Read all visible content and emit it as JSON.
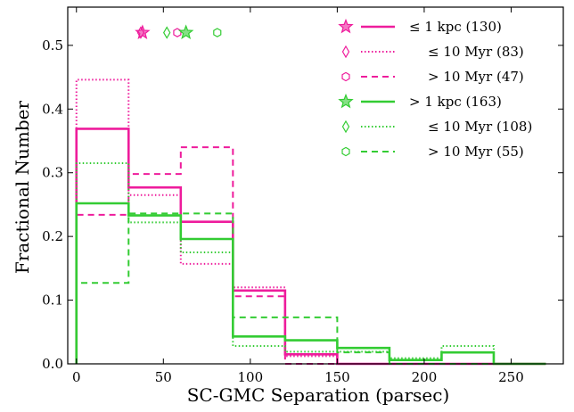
{
  "chart_data": {
    "type": "histogram",
    "xlabel": "SC-GMC Separation (parsec)",
    "ylabel": "Fractional Number",
    "xlim": [
      -5,
      280
    ],
    "ylim": [
      0,
      0.56
    ],
    "xticks": [
      0,
      50,
      100,
      150,
      200,
      250
    ],
    "yticks": [
      0.0,
      0.1,
      0.2,
      0.3,
      0.4,
      0.5
    ],
    "bin_edges": [
      0,
      30,
      60,
      90,
      120,
      150,
      180,
      210,
      240,
      270
    ],
    "series": [
      {
        "name": "≤ 1 kpc (130)",
        "color": "#ee1c9c",
        "style": "solid",
        "marker": "star",
        "marker_x": 38,
        "values": [
          0.369,
          0.277,
          0.223,
          0.115,
          0.015,
          0.0,
          0.0,
          0.0,
          0.0
        ]
      },
      {
        "name": "≤ 10 Myr (83)",
        "color": "#ee1c9c",
        "style": "dotted",
        "marker": "diamond",
        "marker_x": 37,
        "values": [
          0.446,
          0.265,
          0.157,
          0.12,
          0.012,
          0.0,
          0.0,
          0.0,
          0.0
        ]
      },
      {
        "name": "> 10 Myr (47)",
        "color": "#ee1c9c",
        "style": "dashed",
        "marker": "hexagon",
        "marker_x": 58,
        "values": [
          0.234,
          0.298,
          0.34,
          0.106,
          0.0,
          0.0,
          0.0,
          0.0,
          0.0
        ]
      },
      {
        "name": "> 1 kpc (163)",
        "color": "#33cc33",
        "style": "solid",
        "marker": "star",
        "marker_x": 63,
        "values": [
          0.252,
          0.233,
          0.196,
          0.043,
          0.037,
          0.025,
          0.006,
          0.018,
          0.0
        ]
      },
      {
        "name": "≤ 10 Myr (108)",
        "color": "#33cc33",
        "style": "dotted",
        "marker": "diamond",
        "marker_x": 52,
        "values": [
          0.315,
          0.222,
          0.175,
          0.028,
          0.019,
          0.019,
          0.009,
          0.028,
          0.0
        ]
      },
      {
        "name": "> 10 Myr (55)",
        "color": "#33cc33",
        "style": "dashed",
        "marker": "hexagon",
        "marker_x": 81,
        "values": [
          0.127,
          0.236,
          0.236,
          0.073,
          0.073,
          0.018,
          0.0,
          0.0,
          0.0
        ]
      }
    ],
    "marker_y": 0.52,
    "legend_placement": "top-right",
    "grid": false
  }
}
